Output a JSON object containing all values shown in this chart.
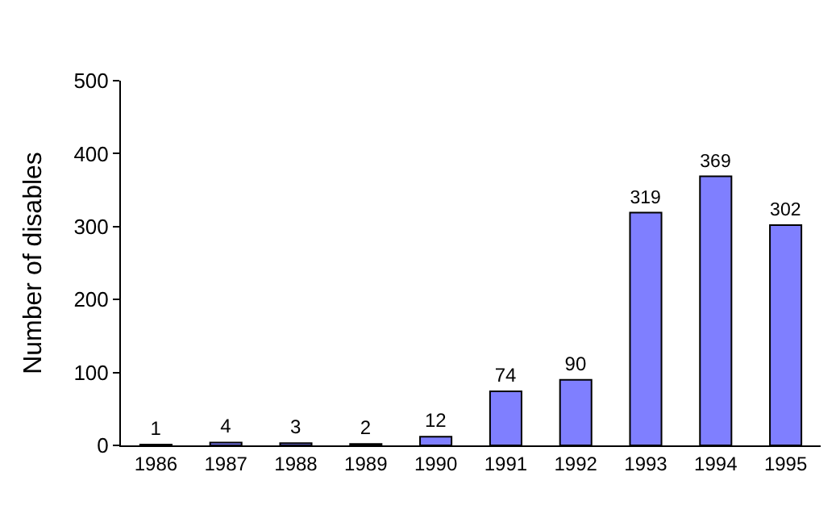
{
  "chart_data": {
    "type": "bar",
    "ylabel": "Number of disables",
    "categories": [
      "1986",
      "1987",
      "1988",
      "1989",
      "1990",
      "1991",
      "1992",
      "1993",
      "1994",
      "1995"
    ],
    "values": [
      1,
      4,
      3,
      2,
      12,
      74,
      90,
      319,
      369,
      302
    ],
    "color": "#7f7fff",
    "ylim": [
      0,
      500
    ],
    "yticks": [
      0,
      100,
      200,
      300,
      400,
      500
    ],
    "data_labels": true
  }
}
